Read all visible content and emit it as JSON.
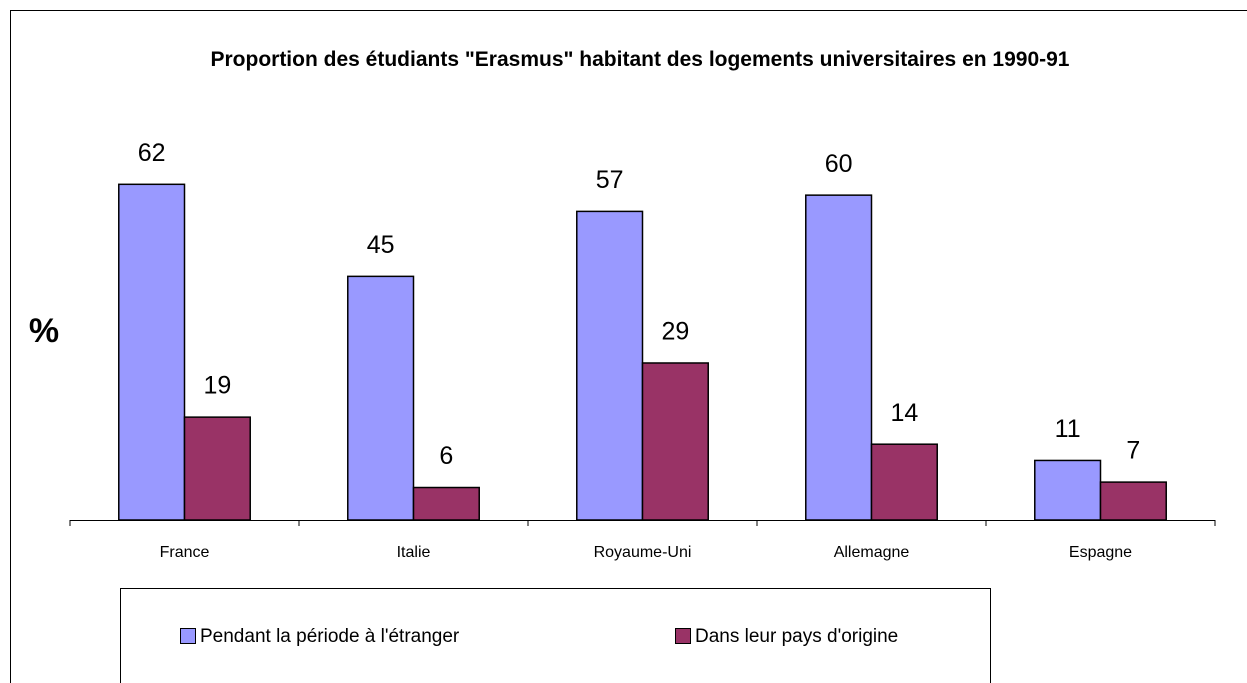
{
  "chart_data": {
    "type": "bar",
    "title": "Proportion des étudiants \"Erasmus\" habitant des logements universitaires en 1990-91",
    "ylabel": "%",
    "categories": [
      "France",
      "Italie",
      "Royaume-Uni",
      "Allemagne",
      "Espagne"
    ],
    "series": [
      {
        "name": "Pendant la période à l'étranger",
        "color": "#9999ff",
        "values": [
          62,
          45,
          57,
          60,
          11
        ]
      },
      {
        "name": "Dans leur pays d'origine",
        "color": "#993366",
        "values": [
          19,
          6,
          29,
          14,
          7
        ]
      }
    ],
    "ylim": [
      0,
      70
    ],
    "legend": "bottom"
  }
}
